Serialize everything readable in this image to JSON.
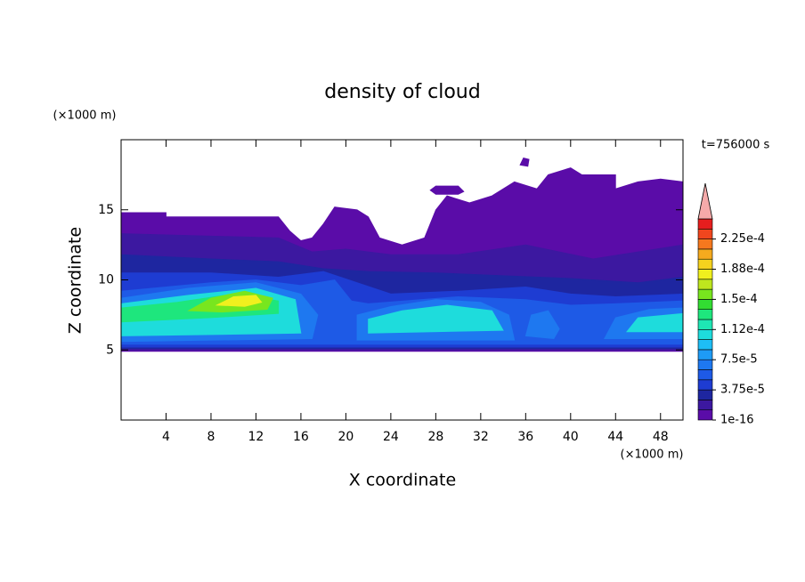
{
  "chart_data": {
    "type": "contour",
    "title": "density of cloud",
    "x_label": "X coordinate",
    "y_label": "Z coordinate",
    "x_unit": "(×1000 m)",
    "y_unit": "(×1000 m)",
    "annotation": "t=756000 s",
    "xlim": [
      0,
      50
    ],
    "ylim": [
      0,
      20
    ],
    "xticks": [
      4,
      8,
      12,
      16,
      20,
      24,
      28,
      32,
      36,
      40,
      44,
      48
    ],
    "yticks": [
      5,
      10,
      15
    ],
    "levels": [
      1e-16,
      1.25e-05,
      2.5e-05,
      3.75e-05,
      5e-05,
      6.25e-05,
      7.5e-05,
      8.75e-05,
      0.0001,
      0.0001125,
      0.000125,
      0.0001375,
      0.00015,
      0.0001625,
      0.000175,
      0.0001875,
      0.0002,
      0.0002125,
      0.000225,
      0.0002375,
      0.00025
    ],
    "colors": [
      "#5a0ca8",
      "#3c18a0",
      "#1e26a0",
      "#1e3cd2",
      "#1e5ae6",
      "#1e78f0",
      "#1e9bf5",
      "#1ebef5",
      "#1edcdc",
      "#1ee6b4",
      "#1ee67d",
      "#32dc32",
      "#78e61e",
      "#bee61e",
      "#f0f01e",
      "#f5d21e",
      "#f5aa1e",
      "#f5781e",
      "#f0461e",
      "#e61e1e"
    ],
    "extend_color": "#f5aaaa",
    "colorbar_ticks": [
      1e-16,
      {
        "value": 3.75e-05,
        "label": "3.75e-5"
      },
      {
        "value": 7.5e-05,
        "label": "7.5e-5"
      },
      {
        "value": 0.0001125,
        "label": "1.12e-4"
      },
      {
        "value": 0.00015,
        "label": "1.5e-4"
      },
      {
        "value": 0.0001875,
        "label": "1.88e-4"
      },
      {
        "value": 0.000225,
        "label": "2.25e-4"
      }
    ],
    "contours": [
      {
        "level": 1e-16,
        "x": [
          0,
          0,
          4,
          4,
          14,
          15,
          16,
          17,
          18,
          19,
          21,
          22,
          23,
          25,
          27,
          28,
          29,
          31,
          33,
          35,
          37,
          38,
          40,
          41,
          44,
          44,
          46,
          48,
          50,
          50
        ],
        "z": [
          4.9,
          14.8,
          14.8,
          14.5,
          14.5,
          13.5,
          12.8,
          13,
          14,
          15.2,
          15,
          14.5,
          13,
          12.5,
          13,
          15,
          16,
          15.5,
          16,
          17,
          16.5,
          17.5,
          18,
          17.5,
          17.5,
          16.5,
          17,
          17.2,
          17,
          4.9
        ]
      },
      {
        "level": 1e-16,
        "x": [
          27.5,
          28,
          30,
          30.5,
          30,
          28
        ],
        "z": [
          16.4,
          16.7,
          16.7,
          16.3,
          16.1,
          16.1
        ]
      },
      {
        "level": 1e-16,
        "x": [
          35.5,
          35.8,
          36.3,
          36.2
        ],
        "z": [
          18.2,
          18.7,
          18.6,
          18.1
        ]
      },
      {
        "level": 1.25e-05,
        "x": [
          0,
          0,
          14,
          17,
          20,
          24,
          30,
          36,
          42,
          50,
          50
        ],
        "z": [
          5,
          13.3,
          13,
          12,
          12.2,
          11.8,
          11.8,
          12.5,
          11.5,
          12.5,
          5
        ]
      },
      {
        "level": 2.5e-05,
        "x": [
          0,
          0,
          8,
          14,
          18,
          22,
          28,
          34,
          40,
          46,
          50,
          50
        ],
        "z": [
          5.1,
          11.8,
          11.5,
          11.3,
          10.8,
          10.6,
          10.5,
          10.3,
          10.1,
          9.8,
          10.2,
          5.1
        ]
      },
      {
        "level": 3.75e-05,
        "x": [
          0,
          0,
          8,
          14,
          18,
          21,
          24,
          30,
          36,
          40,
          44,
          50,
          50
        ],
        "z": [
          5.2,
          10.5,
          10.5,
          10.2,
          10.6,
          9.8,
          9,
          9.2,
          9.5,
          9,
          8.8,
          9,
          5.2
        ]
      },
      {
        "level": 5e-05,
        "x": [
          0,
          0,
          8,
          12,
          16,
          19,
          20.5,
          22,
          30,
          36,
          40,
          44,
          50,
          50
        ],
        "z": [
          5.4,
          9.2,
          9.8,
          10,
          9.6,
          10,
          8.5,
          8.3,
          8.8,
          8.6,
          8.2,
          8.3,
          8.5,
          5.4
        ]
      },
      {
        "level": 6.25e-05,
        "x": [
          0,
          0,
          6,
          12,
          16,
          17.5,
          17
        ],
        "z": [
          5.6,
          8.7,
          9.4,
          9.8,
          9,
          7.5,
          5.8
        ]
      },
      {
        "level": 6.25e-05,
        "x": [
          21,
          21,
          24,
          28,
          32,
          34.5,
          35
        ],
        "z": [
          5.7,
          7.5,
          8.1,
          8.6,
          8.4,
          7.5,
          5.7
        ]
      },
      {
        "level": 6.25e-05,
        "x": [
          43,
          44,
          47,
          50,
          50
        ],
        "z": [
          5.8,
          7.3,
          7.9,
          8,
          5.8
        ]
      },
      {
        "level": 6.25e-05,
        "x": [
          36,
          36.5,
          38,
          39,
          38.5
        ],
        "z": [
          6,
          7.5,
          7.8,
          6.5,
          5.8
        ]
      },
      {
        "level": 0.0001,
        "x": [
          0,
          0,
          6,
          12,
          15.5,
          16
        ],
        "z": [
          6,
          8.3,
          8.9,
          9.4,
          8.6,
          6.2
        ]
      },
      {
        "level": 0.0001,
        "x": [
          22,
          22,
          25,
          29,
          33,
          34
        ],
        "z": [
          6.2,
          7.2,
          7.8,
          8.2,
          7.8,
          6.4
        ]
      },
      {
        "level": 0.0001,
        "x": [
          45,
          46,
          50,
          50
        ],
        "z": [
          6.3,
          7.3,
          7.6,
          6.3
        ]
      },
      {
        "level": 0.000125,
        "x": [
          0,
          0,
          5,
          10,
          14,
          14,
          8
        ],
        "z": [
          7,
          8,
          8.4,
          9,
          8.5,
          7.6,
          7.3
        ]
      },
      {
        "level": 0.00015,
        "x": [
          6,
          8,
          11,
          13.5,
          13,
          9
        ],
        "z": [
          7.8,
          8.7,
          9.2,
          8.7,
          7.9,
          7.7
        ]
      },
      {
        "level": 0.000175,
        "x": [
          8.5,
          10,
          12,
          12.5,
          11
        ],
        "z": [
          8.2,
          8.8,
          8.9,
          8.4,
          8.1
        ]
      }
    ]
  }
}
